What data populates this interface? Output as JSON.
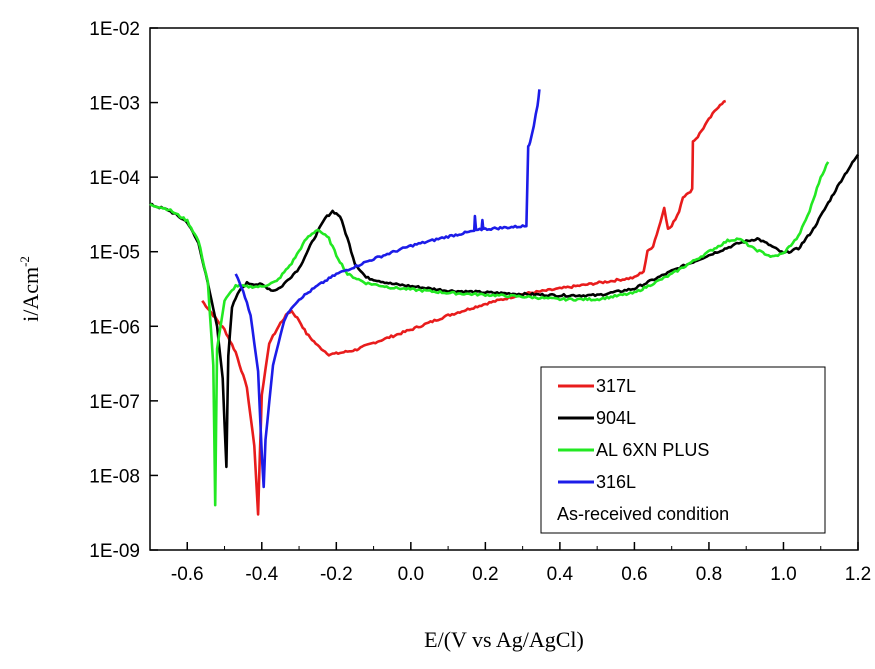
{
  "chart_data": {
    "type": "line",
    "title": "",
    "xlabel": "E/(V vs Ag/AgCl)",
    "ylabel_base": "i/Acm",
    "ylabel_exp": "-2",
    "xlim": [
      -0.7,
      1.2
    ],
    "ylim_log10": [
      -9,
      -2
    ],
    "yscale": "log",
    "x_ticks": [
      -0.6,
      -0.4,
      -0.2,
      0.0,
      0.2,
      0.4,
      0.6,
      0.8,
      1.0,
      1.2
    ],
    "x_tick_labels": [
      "-0.6",
      "-0.4",
      "-0.2",
      "0.0",
      "0.2",
      "0.4",
      "0.6",
      "0.8",
      "1.0",
      "1.2"
    ],
    "y_ticks_log10": [
      -9,
      -8,
      -7,
      -6,
      -5,
      -4,
      -3,
      -2
    ],
    "y_tick_labels": [
      "1E-09",
      "1E-08",
      "1E-07",
      "1E-06",
      "1E-05",
      "1E-04",
      "1E-03",
      "1E-02"
    ],
    "grid": false,
    "legend_position": "bottom-right",
    "annotation": "As-received condition",
    "series": [
      {
        "name": "317L",
        "color": "#e81c1c",
        "points": [
          [
            -0.56,
            2.2e-06
          ],
          [
            -0.53,
            1.4e-06
          ],
          [
            -0.5,
            9e-07
          ],
          [
            -0.47,
            4.5e-07
          ],
          [
            -0.44,
            1.5e-07
          ],
          [
            -0.42,
            2.5e-08
          ],
          [
            -0.41,
            3e-09
          ],
          [
            -0.405,
            2e-08
          ],
          [
            -0.4,
            1.2e-07
          ],
          [
            -0.38,
            6e-07
          ],
          [
            -0.35,
            1.1e-06
          ],
          [
            -0.33,
            1.5e-06
          ],
          [
            -0.32,
            1.6e-06
          ],
          [
            -0.3,
            1.2e-06
          ],
          [
            -0.28,
            8e-07
          ],
          [
            -0.25,
            5.5e-07
          ],
          [
            -0.22,
            4.2e-07
          ],
          [
            -0.2,
            4.3e-07
          ],
          [
            -0.15,
            4.8e-07
          ],
          [
            -0.1,
            6e-07
          ],
          [
            0.0,
            9e-07
          ],
          [
            0.1,
            1.4e-06
          ],
          [
            0.2,
            2e-06
          ],
          [
            0.3,
            2.7e-06
          ],
          [
            0.4,
            3.2e-06
          ],
          [
            0.5,
            3.8e-06
          ],
          [
            0.6,
            4.5e-06
          ],
          [
            0.625,
            5.5e-06
          ],
          [
            0.635,
            1e-05
          ],
          [
            0.65,
            1.2e-05
          ],
          [
            0.67,
            2.5e-05
          ],
          [
            0.68,
            4e-05
          ],
          [
            0.69,
            2e-05
          ],
          [
            0.7,
            2.2e-05
          ],
          [
            0.72,
            3.5e-05
          ],
          [
            0.73,
            5.5e-05
          ],
          [
            0.745,
            6e-05
          ],
          [
            0.755,
            7e-05
          ],
          [
            0.757,
            0.0003
          ],
          [
            0.77,
            0.00035
          ],
          [
            0.79,
            0.0005
          ],
          [
            0.81,
            0.0007
          ],
          [
            0.83,
            0.00095
          ],
          [
            0.845,
            0.00105
          ]
        ]
      },
      {
        "name": "904L",
        "color": "#000000",
        "points": [
          [
            -0.7,
            4.3e-05
          ],
          [
            -0.65,
            3.6e-05
          ],
          [
            -0.6,
            2.5e-05
          ],
          [
            -0.57,
            1.3e-05
          ],
          [
            -0.55,
            5e-06
          ],
          [
            -0.52,
            1e-06
          ],
          [
            -0.505,
            2e-07
          ],
          [
            -0.495,
            1.3e-08
          ],
          [
            -0.49,
            4e-07
          ],
          [
            -0.48,
            1.8e-06
          ],
          [
            -0.46,
            3e-06
          ],
          [
            -0.44,
            3.8e-06
          ],
          [
            -0.4,
            3.6e-06
          ],
          [
            -0.37,
            3e-06
          ],
          [
            -0.35,
            3.3e-06
          ],
          [
            -0.3,
            6e-06
          ],
          [
            -0.26,
            1.5e-05
          ],
          [
            -0.23,
            2.8e-05
          ],
          [
            -0.21,
            3.5e-05
          ],
          [
            -0.19,
            3e-05
          ],
          [
            -0.17,
            1.5e-05
          ],
          [
            -0.15,
            7e-06
          ],
          [
            -0.12,
            4.5e-06
          ],
          [
            -0.05,
            3.7e-06
          ],
          [
            0.1,
            3e-06
          ],
          [
            0.3,
            2.7e-06
          ],
          [
            0.4,
            2.6e-06
          ],
          [
            0.5,
            2.6e-06
          ],
          [
            0.6,
            3.2e-06
          ],
          [
            0.7,
            5.5e-06
          ],
          [
            0.8,
            9e-06
          ],
          [
            0.88,
            1.3e-05
          ],
          [
            0.93,
            1.5e-05
          ],
          [
            0.96,
            1.25e-05
          ],
          [
            1.0,
            9.5e-06
          ],
          [
            1.04,
            1.1e-05
          ],
          [
            1.08,
            2e-05
          ],
          [
            1.12,
            4.5e-05
          ],
          [
            1.16,
            0.0001
          ],
          [
            1.2,
            0.0002
          ]
        ]
      },
      {
        "name": "AL 6XN PLUS",
        "color": "#22e822",
        "points": [
          [
            -0.7,
            4.3e-05
          ],
          [
            -0.65,
            3.7e-05
          ],
          [
            -0.6,
            2.6e-05
          ],
          [
            -0.57,
            1.4e-05
          ],
          [
            -0.545,
            4e-06
          ],
          [
            -0.53,
            3e-07
          ],
          [
            -0.525,
            4e-09
          ],
          [
            -0.52,
            5e-07
          ],
          [
            -0.5,
            2.2e-06
          ],
          [
            -0.47,
            3.5e-06
          ],
          [
            -0.44,
            3.4e-06
          ],
          [
            -0.4,
            3.4e-06
          ],
          [
            -0.36,
            4e-06
          ],
          [
            -0.32,
            7e-06
          ],
          [
            -0.28,
            1.5e-05
          ],
          [
            -0.25,
            2e-05
          ],
          [
            -0.22,
            1.5e-05
          ],
          [
            -0.2,
            9e-06
          ],
          [
            -0.17,
            5e-06
          ],
          [
            -0.12,
            3.8e-06
          ],
          [
            -0.05,
            3.3e-06
          ],
          [
            0.1,
            2.8e-06
          ],
          [
            0.3,
            2.5e-06
          ],
          [
            0.4,
            2.3e-06
          ],
          [
            0.5,
            2.3e-06
          ],
          [
            0.6,
            2.8e-06
          ],
          [
            0.7,
            5e-06
          ],
          [
            0.8,
            1e-05
          ],
          [
            0.85,
            1.4e-05
          ],
          [
            0.88,
            1.5e-05
          ],
          [
            0.92,
            1.1e-05
          ],
          [
            0.97,
            8.5e-06
          ],
          [
            1.0,
            9.5e-06
          ],
          [
            1.04,
            1.6e-05
          ],
          [
            1.07,
            3.5e-05
          ],
          [
            1.1,
            0.0001
          ],
          [
            1.12,
            0.00016
          ]
        ]
      },
      {
        "name": "316L",
        "color": "#1c1ce8",
        "points": [
          [
            -0.47,
            5e-06
          ],
          [
            -0.45,
            3e-06
          ],
          [
            -0.43,
            1.4e-06
          ],
          [
            -0.41,
            2.5e-07
          ],
          [
            -0.4,
            2e-08
          ],
          [
            -0.395,
            7e-09
          ],
          [
            -0.39,
            3e-08
          ],
          [
            -0.37,
            3e-07
          ],
          [
            -0.34,
            1.2e-06
          ],
          [
            -0.32,
            1.8e-06
          ],
          [
            -0.3,
            2.3e-06
          ],
          [
            -0.25,
            3.5e-06
          ],
          [
            -0.2,
            5e-06
          ],
          [
            -0.1,
            8e-06
          ],
          [
            0.0,
            1.2e-05
          ],
          [
            0.1,
            1.6e-05
          ],
          [
            0.17,
            1.9e-05
          ],
          [
            0.172,
            3e-05
          ],
          [
            0.175,
            1.9e-05
          ],
          [
            0.19,
            2e-05
          ],
          [
            0.192,
            2.7e-05
          ],
          [
            0.195,
            2e-05
          ],
          [
            0.25,
            2.1e-05
          ],
          [
            0.3,
            2.2e-05
          ],
          [
            0.31,
            2.2e-05
          ],
          [
            0.315,
            0.00026
          ],
          [
            0.32,
            0.0003
          ],
          [
            0.33,
            0.0005
          ],
          [
            0.34,
            0.0009
          ],
          [
            0.345,
            0.0015
          ]
        ]
      }
    ]
  }
}
